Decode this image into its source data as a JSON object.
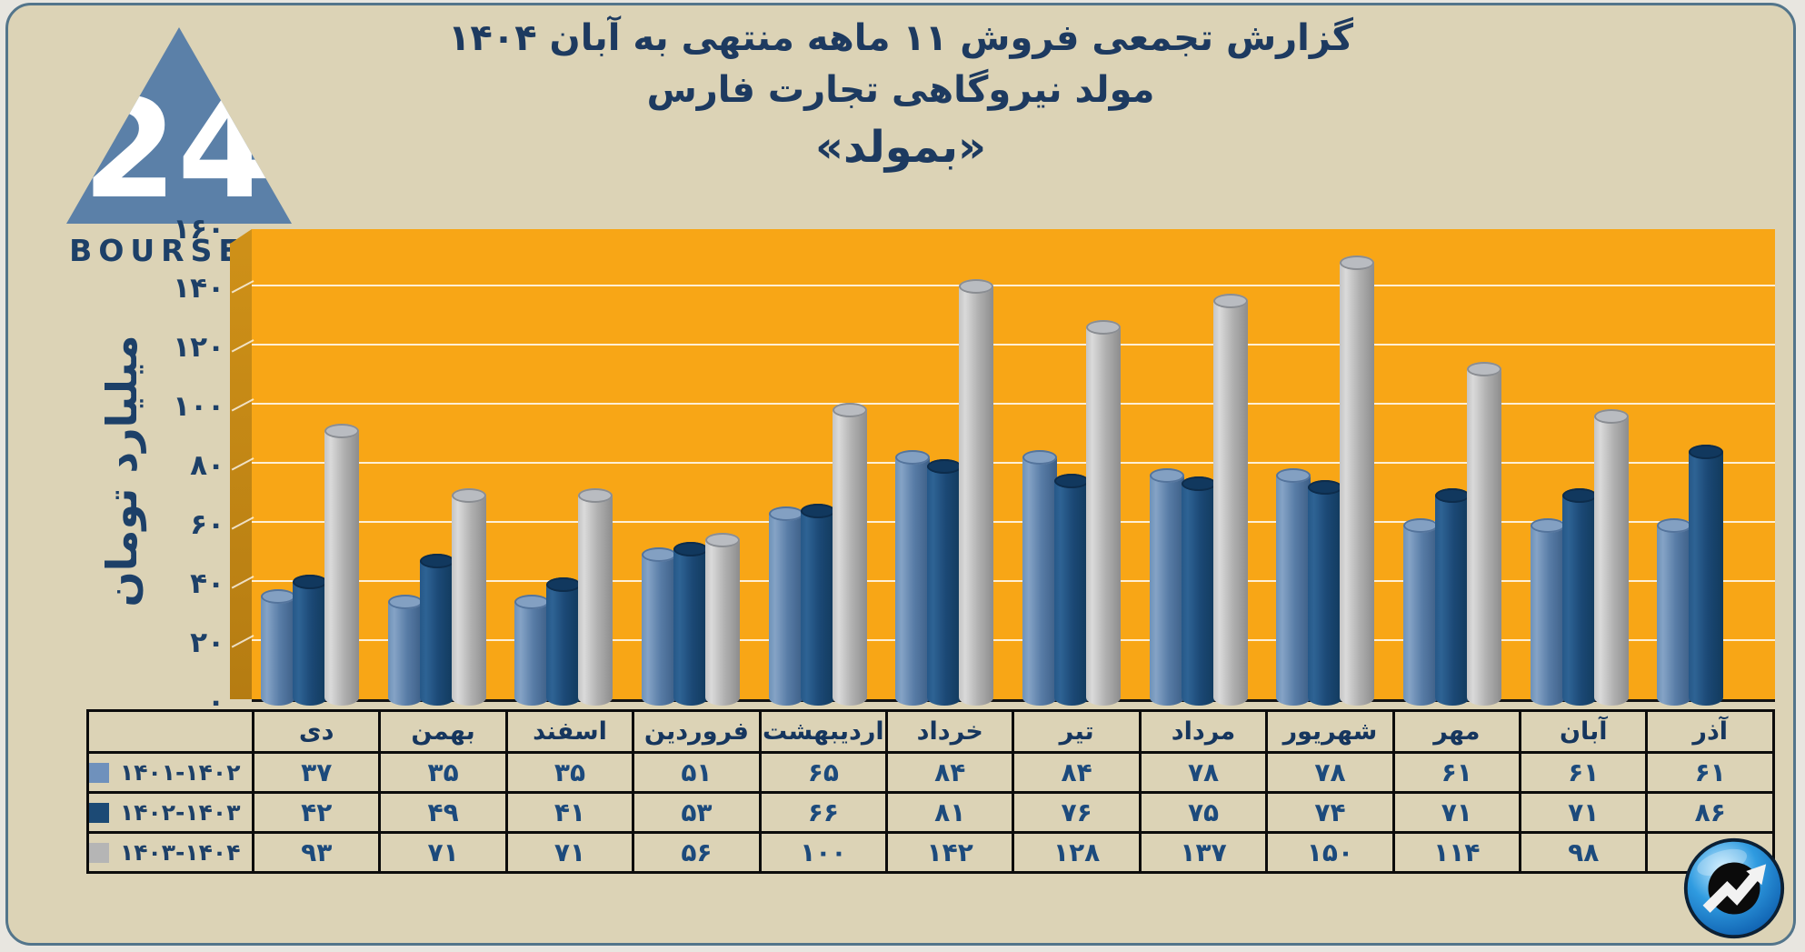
{
  "logo": {
    "brand": "BOURSE24",
    "mark": "24",
    "triangle_color": "#5b80a8"
  },
  "title": {
    "line1": "گزارش تجمعی فروش ۱۱ ماهه منتهی به آبان ۱۴۰۴",
    "line2": "مولد نیروگاهی تجارت فارس",
    "line3": "«بمولد»"
  },
  "y_axis": {
    "title": "میلیارد تومان",
    "ticks": [
      "۱۶۰",
      "۱۴۰",
      "۱۲۰",
      "۱۰۰",
      "۸۰",
      "۶۰",
      "۴۰",
      "۲۰",
      "۰"
    ],
    "max": 160,
    "step": 20
  },
  "months": [
    "دی",
    "بهمن",
    "اسفند",
    "فروردین",
    "اردیبهشت",
    "خرداد",
    "تیر",
    "مرداد",
    "شهریور",
    "مهر",
    "آبان",
    "آذر"
  ],
  "chart_data": {
    "type": "bar",
    "title": "گزارش تجمعی فروش ۱۱ ماهه منتهی به آبان ۱۴۰۴ - مولد نیروگاهی تجارت فارس «بمولد»",
    "categories": [
      "دی",
      "بهمن",
      "اسفند",
      "فروردین",
      "اردیبهشت",
      "خرداد",
      "تیر",
      "مرداد",
      "شهریور",
      "مهر",
      "آبان",
      "آذر"
    ],
    "series": [
      {
        "name": "۱۴۰۱-۱۴۰۲",
        "values": [
          37,
          35,
          35,
          51,
          65,
          84,
          84,
          78,
          78,
          61,
          61,
          61
        ]
      },
      {
        "name": "۱۴۰۲-۱۴۰۳",
        "values": [
          42,
          49,
          41,
          53,
          66,
          81,
          76,
          75,
          74,
          71,
          71,
          86
        ]
      },
      {
        "name": "۱۴۰۳-۱۴۰۴",
        "values": [
          93,
          71,
          71,
          56,
          100,
          142,
          128,
          137,
          150,
          114,
          98,
          null
        ]
      }
    ],
    "xlabel": "",
    "ylabel": "میلیارد تومان",
    "ylim": [
      0,
      160
    ],
    "grid": true,
    "legend_position": "table-left-column",
    "plot_bg": "#f8a616"
  },
  "series_style": [
    {
      "legend_color": "#6f91bc",
      "grad": [
        "#6e92b8",
        "#85a3c6",
        "#587ca6",
        "#3c5e86"
      ],
      "cap": "#83a0c2",
      "cap_edge": "#54749c"
    },
    {
      "legend_color": "#1c4a75",
      "grad": [
        "#265888",
        "#2e6394",
        "#1b4875",
        "#113a5c"
      ],
      "cap": "#11385e",
      "cap_edge": "#0d2c4b"
    },
    {
      "legend_color": "#b5b5b5",
      "grad": [
        "#c4c4c4",
        "#dadada",
        "#b2b2b2",
        "#8d8d8d"
      ],
      "cap": "#b9bcc1",
      "cap_edge": "#8a8d92"
    }
  ],
  "colors": {
    "card_bg": "#dcd3b6",
    "card_border": "#53758b",
    "plot_orange": "#f8a616",
    "wall_orange": "#c18515",
    "navy_text": "#1d4068",
    "table_text": "#1c4a7c",
    "gridline": "#ffffff"
  }
}
